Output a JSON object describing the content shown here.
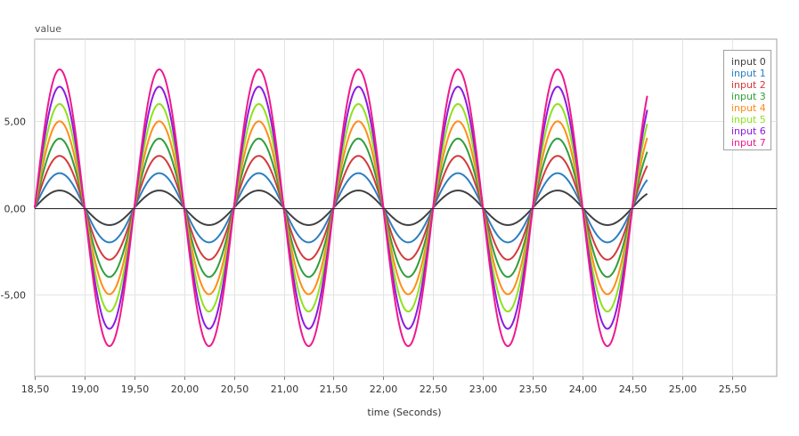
{
  "chart_data": {
    "type": "line",
    "title": "",
    "xlabel": "time (Seconds)",
    "ylabel": "value",
    "xlim": [
      18.5,
      25.95
    ],
    "ylim": [
      -9.75,
      9.75
    ],
    "x_ticks": [
      18.5,
      19.0,
      19.5,
      20.0,
      20.5,
      21.0,
      21.5,
      22.0,
      22.5,
      23.0,
      23.5,
      24.0,
      24.5,
      25.0,
      25.5
    ],
    "x_tick_labels": [
      "18,50",
      "19,00",
      "19,50",
      "20,00",
      "20,50",
      "21,00",
      "21,50",
      "22,00",
      "22,50",
      "23,00",
      "23,50",
      "24,00",
      "24,50",
      "25,00",
      "25,50"
    ],
    "y_ticks": [
      5,
      0,
      -5
    ],
    "y_tick_labels": [
      "5,00",
      "0,00",
      "-5,00"
    ],
    "grid": true,
    "legend_position": "top-right",
    "zero_line": true,
    "x_start": 18.5,
    "x_end": 24.65,
    "period_seconds": 1.0,
    "waveform": "y = -amplitude * sin(2*pi*t)",
    "series": [
      {
        "name": "input 0",
        "amplitude": 1,
        "color": "#404040"
      },
      {
        "name": "input 1",
        "amplitude": 2,
        "color": "#2b7fc1"
      },
      {
        "name": "input 2",
        "amplitude": 3,
        "color": "#d33a3a"
      },
      {
        "name": "input 3",
        "amplitude": 4,
        "color": "#2f9e3a"
      },
      {
        "name": "input 4",
        "amplitude": 5,
        "color": "#ff8c1a"
      },
      {
        "name": "input 5",
        "amplitude": 6,
        "color": "#8ee21b"
      },
      {
        "name": "input 6",
        "amplitude": 7,
        "color": "#8e1adf"
      },
      {
        "name": "input 7",
        "amplitude": 8,
        "color": "#ee1a8e"
      }
    ]
  }
}
